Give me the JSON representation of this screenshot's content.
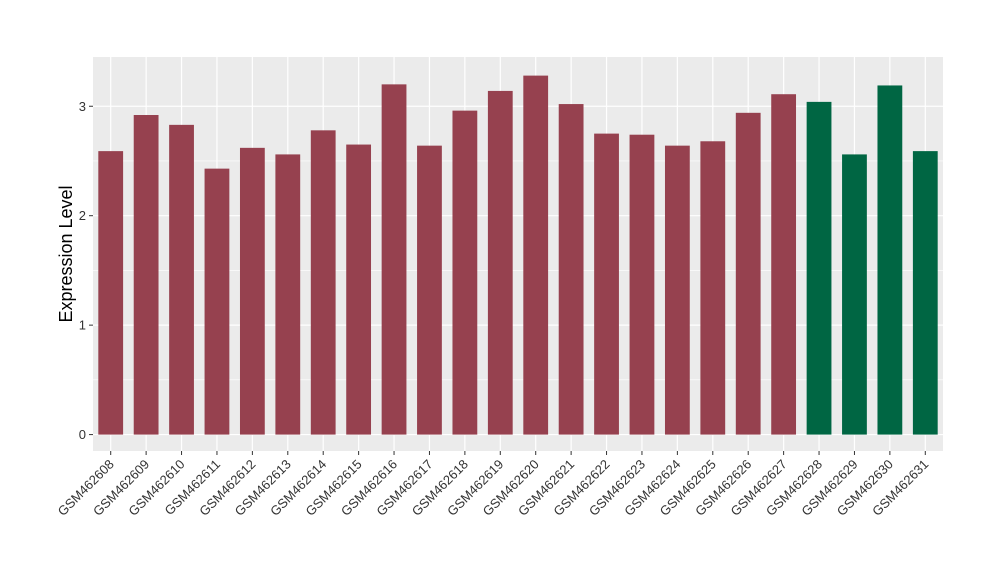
{
  "chart_data": {
    "type": "bar",
    "title": "",
    "xlabel": "",
    "ylabel": "Expression Level",
    "ylim": [
      -0.15,
      3.45
    ],
    "yticks": [
      0,
      1,
      2,
      3
    ],
    "grid": true,
    "categories": [
      "GSM462608",
      "GSM462609",
      "GSM462610",
      "GSM462611",
      "GSM462612",
      "GSM462613",
      "GSM462614",
      "GSM462615",
      "GSM462616",
      "GSM462617",
      "GSM462618",
      "GSM462619",
      "GSM462620",
      "GSM462621",
      "GSM462622",
      "GSM462623",
      "GSM462624",
      "GSM462625",
      "GSM462626",
      "GSM462627",
      "GSM462628",
      "GSM462629",
      "GSM462630",
      "GSM462631"
    ],
    "values": [
      2.59,
      2.92,
      2.83,
      2.43,
      2.62,
      2.56,
      2.78,
      2.65,
      3.2,
      2.64,
      2.96,
      3.14,
      3.28,
      3.02,
      2.75,
      2.74,
      2.64,
      2.68,
      2.94,
      3.11,
      3.04,
      2.56,
      3.19,
      2.59
    ],
    "groups": [
      "a",
      "a",
      "a",
      "a",
      "a",
      "a",
      "a",
      "a",
      "a",
      "a",
      "a",
      "a",
      "a",
      "a",
      "a",
      "a",
      "a",
      "a",
      "a",
      "a",
      "b",
      "b",
      "b",
      "b"
    ],
    "colors": {
      "a": "#96414f",
      "b": "#006643"
    },
    "panel_background": "#ebebeb",
    "grid_color": "#ffffff"
  }
}
